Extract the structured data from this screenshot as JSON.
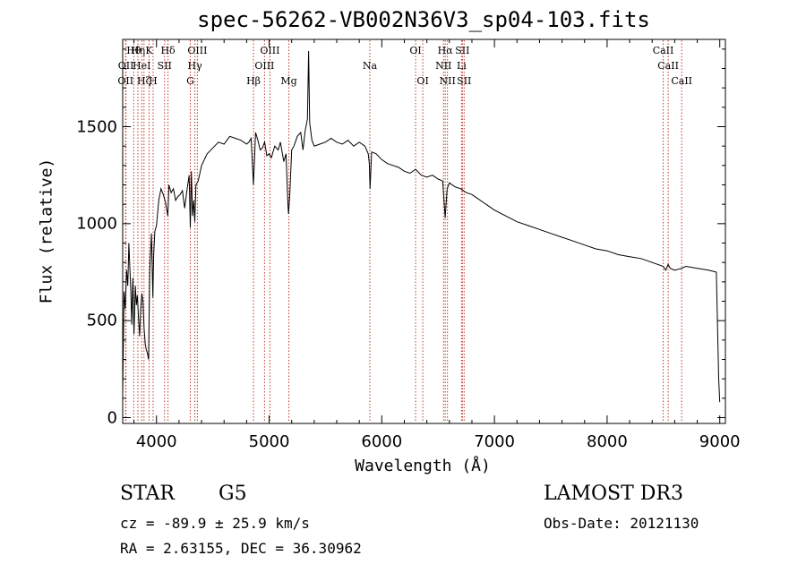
{
  "chart_data": {
    "type": "line",
    "title": "spec-56262-VB002N36V3_sp04-103.fits",
    "xlabel": "Wavelength (Å)",
    "ylabel": "Flux (relative)",
    "xlim": [
      3700,
      9050
    ],
    "ylim": [
      -30,
      1950
    ],
    "xticks": [
      {
        "value": 4000,
        "label": "4000"
      },
      {
        "value": 5000,
        "label": "5000"
      },
      {
        "value": 6000,
        "label": "6000"
      },
      {
        "value": 7000,
        "label": "7000"
      },
      {
        "value": 8000,
        "label": "8000"
      },
      {
        "value": 9000,
        "label": "9000"
      }
    ],
    "yticks": [
      {
        "value": 0,
        "label": "0"
      },
      {
        "value": 500,
        "label": "500"
      },
      {
        "value": 1000,
        "label": "1000"
      },
      {
        "value": 1500,
        "label": "1500"
      }
    ],
    "series": [
      {
        "name": "spectrum",
        "color": "#000000",
        "x": [
          3700,
          3712,
          3722,
          3735,
          3745,
          3755,
          3765,
          3772,
          3780,
          3790,
          3800,
          3812,
          3822,
          3830,
          3840,
          3850,
          3860,
          3870,
          3880,
          3890,
          3900,
          3910,
          3920,
          3930,
          3940,
          3955,
          3968,
          3975,
          3985,
          4000,
          4020,
          4040,
          4060,
          4080,
          4101,
          4110,
          4130,
          4150,
          4170,
          4190,
          4210,
          4230,
          4250,
          4270,
          4290,
          4300,
          4310,
          4320,
          4330,
          4340,
          4350,
          4370,
          4400,
          4450,
          4500,
          4550,
          4600,
          4650,
          4700,
          4750,
          4800,
          4820,
          4840,
          4861,
          4880,
          4900,
          4920,
          4940,
          4960,
          4980,
          5000,
          5020,
          5050,
          5080,
          5100,
          5130,
          5150,
          5167,
          5172,
          5183,
          5200,
          5220,
          5250,
          5280,
          5300,
          5320,
          5340,
          5350,
          5360,
          5380,
          5400,
          5450,
          5500,
          5550,
          5600,
          5650,
          5700,
          5750,
          5800,
          5850,
          5880,
          5889,
          5896,
          5910,
          5950,
          6000,
          6050,
          6100,
          6150,
          6200,
          6250,
          6300,
          6350,
          6400,
          6450,
          6500,
          6540,
          6563,
          6580,
          6600,
          6650,
          6700,
          6750,
          6800,
          6850,
          6900,
          6950,
          7000,
          7100,
          7200,
          7300,
          7400,
          7500,
          7600,
          7700,
          7800,
          7900,
          8000,
          8100,
          8200,
          8300,
          8400,
          8498,
          8520,
          8542,
          8560,
          8600,
          8662,
          8700,
          8800,
          8900,
          8970,
          8990,
          9000
        ],
        "y": [
          120,
          650,
          560,
          760,
          680,
          900,
          750,
          650,
          480,
          720,
          430,
          680,
          580,
          630,
          520,
          420,
          560,
          640,
          600,
          460,
          380,
          350,
          330,
          300,
          760,
          950,
          620,
          840,
          960,
          990,
          1120,
          1180,
          1150,
          1110,
          1040,
          1200,
          1160,
          1180,
          1120,
          1140,
          1150,
          1170,
          1080,
          1170,
          1250,
          980,
          1270,
          1040,
          1120,
          1010,
          1200,
          1220,
          1300,
          1360,
          1390,
          1420,
          1410,
          1450,
          1440,
          1430,
          1410,
          1420,
          1440,
          1200,
          1470,
          1430,
          1380,
          1390,
          1420,
          1350,
          1360,
          1340,
          1400,
          1380,
          1420,
          1320,
          1360,
          1100,
          1050,
          1150,
          1380,
          1400,
          1450,
          1470,
          1380,
          1480,
          1540,
          1890,
          1520,
          1430,
          1400,
          1410,
          1420,
          1440,
          1420,
          1410,
          1430,
          1400,
          1420,
          1400,
          1360,
          1310,
          1180,
          1370,
          1360,
          1330,
          1310,
          1300,
          1290,
          1270,
          1260,
          1280,
          1250,
          1240,
          1250,
          1230,
          1220,
          1030,
          1180,
          1210,
          1190,
          1180,
          1160,
          1150,
          1130,
          1110,
          1090,
          1070,
          1040,
          1010,
          990,
          970,
          950,
          930,
          910,
          890,
          870,
          860,
          840,
          830,
          820,
          800,
          780,
          760,
          790,
          770,
          760,
          770,
          780,
          770,
          760,
          750,
          200,
          80
        ]
      }
    ],
    "line_markers": {
      "color": "#c0392b",
      "lines": [
        {
          "wl": 3726,
          "tier": 2,
          "label": "OII"
        },
        {
          "wl": 3729,
          "tier": 1,
          "label": "OII"
        },
        {
          "wl": 3798,
          "tier": 0,
          "label": "Hθ"
        },
        {
          "wl": 3835,
          "tier": 0,
          "label": "Hη"
        },
        {
          "wl": 3869,
          "tier": 1,
          "label": "HeI"
        },
        {
          "wl": 3889,
          "tier": 2,
          "label": "Hζ"
        },
        {
          "wl": 3934,
          "tier": 0,
          "label": "K"
        },
        {
          "wl": 3970,
          "tier": 2,
          "label": "H"
        },
        {
          "wl": 4072,
          "tier": 1,
          "label": "SII"
        },
        {
          "wl": 4102,
          "tier": 0,
          "label": "Hδ"
        },
        {
          "wl": 4300,
          "tier": 2,
          "label": "G"
        },
        {
          "wl": 4341,
          "tier": 1,
          "label": "Hγ"
        },
        {
          "wl": 4363,
          "tier": 0,
          "label": "OIII"
        },
        {
          "wl": 4861,
          "tier": 2,
          "label": "Hβ"
        },
        {
          "wl": 4959,
          "tier": 1,
          "label": "OIII"
        },
        {
          "wl": 5007,
          "tier": 0,
          "label": "OIII"
        },
        {
          "wl": 5175,
          "tier": 2,
          "label": "Mg"
        },
        {
          "wl": 5894,
          "tier": 1,
          "label": "Na"
        },
        {
          "wl": 6300,
          "tier": 0,
          "label": "OI"
        },
        {
          "wl": 6364,
          "tier": 2,
          "label": "OI"
        },
        {
          "wl": 6548,
          "tier": 1,
          "label": "NII"
        },
        {
          "wl": 6563,
          "tier": 0,
          "label": "Hα"
        },
        {
          "wl": 6583,
          "tier": 2,
          "label": "NII"
        },
        {
          "wl": 6708,
          "tier": 1,
          "label": "Li"
        },
        {
          "wl": 6716,
          "tier": 0,
          "label": "SII"
        },
        {
          "wl": 6731,
          "tier": 2,
          "label": "SII"
        },
        {
          "wl": 8498,
          "tier": 0,
          "label": "CaII"
        },
        {
          "wl": 8542,
          "tier": 1,
          "label": "CaII"
        },
        {
          "wl": 8662,
          "tier": 2,
          "label": "CaII"
        }
      ]
    }
  },
  "info": {
    "class": "STAR",
    "subclass": "G5",
    "survey": "LAMOST DR3",
    "cz": "cz = -89.9 ± 25.9 km/s",
    "obs_date": "Obs-Date: 20121130",
    "radec": "RA =   2.63155, DEC =  36.30962"
  }
}
